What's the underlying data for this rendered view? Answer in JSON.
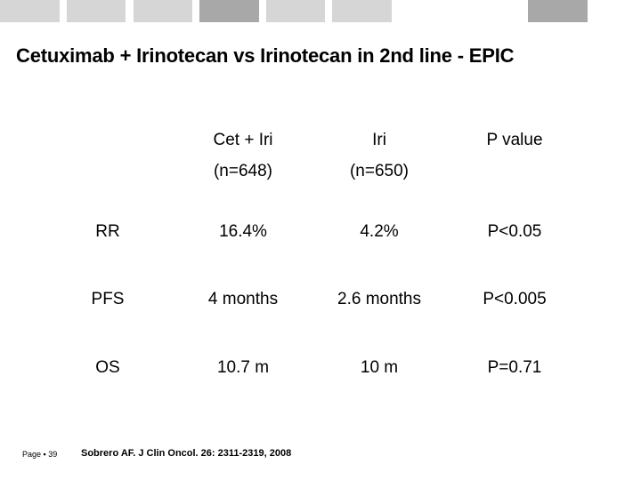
{
  "header_bar": {
    "colors": [
      "#d6d6d6",
      "#d6d6d6",
      "#a8a8a8",
      "#d6d6d6",
      "#d6d6d6",
      "#a8a8a8"
    ]
  },
  "slide": {
    "title": "Cetuximab + Irinotecan vs Irinotecan in 2nd line - EPIC"
  },
  "table": {
    "columns": [
      {
        "label": "Cet + Iri",
        "sub": "(n=648)"
      },
      {
        "label": "Iri",
        "sub": "(n=650)"
      },
      {
        "label": "P value",
        "sub": ""
      }
    ],
    "rows": [
      {
        "label": "RR",
        "values": [
          "16.4%",
          "4.2%",
          "P<0.05"
        ]
      },
      {
        "label": "PFS",
        "values": [
          "4 months",
          "2.6 months",
          "P<0.005"
        ]
      },
      {
        "label": "OS",
        "values": [
          "10.7 m",
          "10 m",
          "P=0.71"
        ]
      }
    ]
  },
  "footer": {
    "page": "Page ▪ 39",
    "reference": "Sobrero AF. J Clin Oncol. 26: 2311-2319, 2008"
  }
}
